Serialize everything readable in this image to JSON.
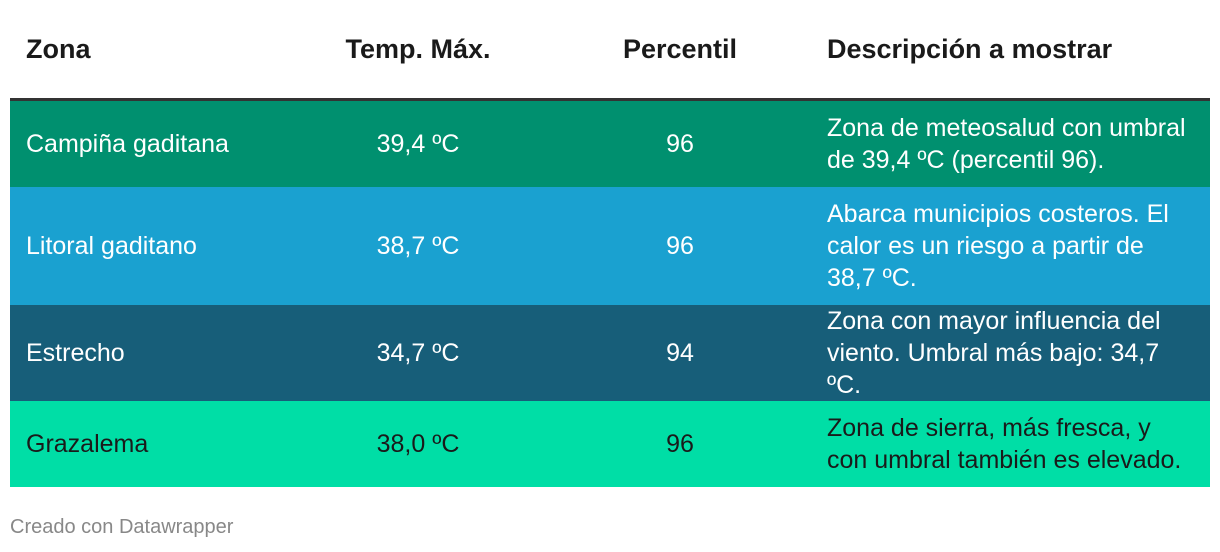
{
  "table": {
    "header": [
      "Zona",
      "Temp. Máx.",
      "Percentil",
      "Descripción a mostrar"
    ],
    "rows": [
      [
        "Campiña gaditana",
        "39,4 ºC",
        "96",
        "Zona de meteosalud con umbral de 39,4 ºC (percentil 96)."
      ],
      [
        "Litoral gaditano",
        "38,7 ºC",
        "96",
        "Abarca municipios costeros. El calor es un riesgo a partir de 38,7 ºC."
      ],
      [
        "Estrecho",
        "34,7 ºC",
        "94",
        "Zona con mayor influencia del viento. Umbral más bajo: 34,7 ºC."
      ],
      [
        "Grazalema",
        "38,0 ºC",
        "96",
        "Zona de sierra, más fresca, y con umbral también es elevado."
      ]
    ]
  },
  "footer": "Creado con Datawrapper"
}
